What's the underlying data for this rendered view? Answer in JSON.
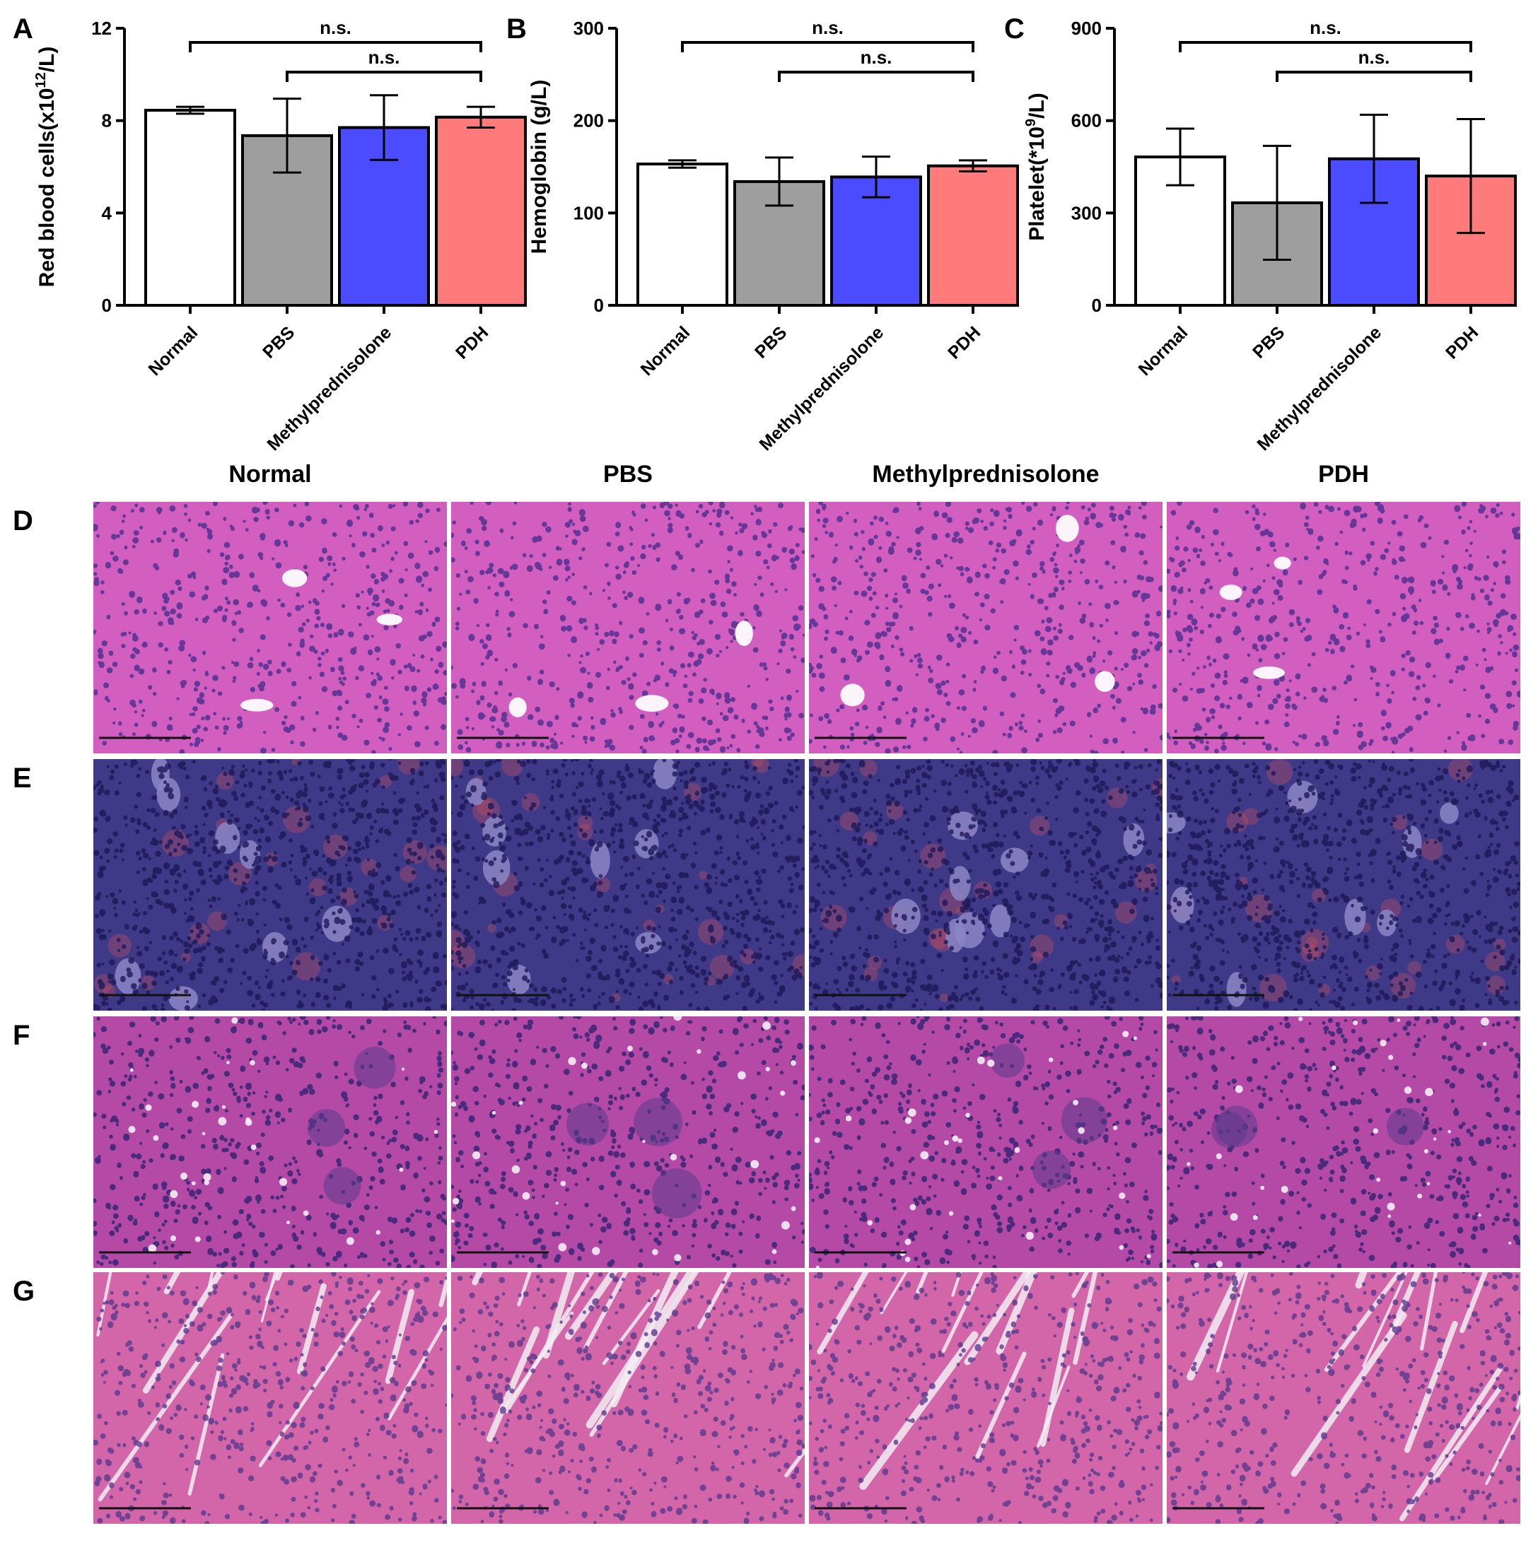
{
  "chart_data": [
    {
      "panel": "A",
      "type": "bar",
      "ylabel": "Red blood cells(x10",
      "ylabel_sup": "12",
      "ylabel_tail": "/L)",
      "ylim": [
        0,
        12
      ],
      "yticks": [
        "0",
        "4",
        "8",
        "12"
      ],
      "categories": [
        "Normal",
        "PBS",
        "Methylprednisolone",
        "PDH"
      ],
      "values": [
        8.45,
        7.35,
        7.7,
        8.15
      ],
      "errors": [
        0.15,
        1.6,
        1.4,
        0.45
      ],
      "colors": [
        "#ffffff",
        "#9e9e9e",
        "#4b4bff",
        "#ff7b7b"
      ],
      "significance": [
        {
          "from": 0,
          "to": 3,
          "label": "n.s."
        },
        {
          "from": 1,
          "to": 3,
          "label": "n.s."
        }
      ]
    },
    {
      "panel": "B",
      "type": "bar",
      "ylabel": "Hemoglobin (g/L)",
      "ylabel_sup": "",
      "ylabel_tail": "",
      "ylim": [
        0,
        300
      ],
      "yticks": [
        "0",
        "100",
        "200",
        "300"
      ],
      "categories": [
        "Normal",
        "PBS",
        "Methylprednisolone",
        "PDH"
      ],
      "values": [
        153,
        134,
        139,
        151
      ],
      "errors": [
        4,
        26,
        22,
        6
      ],
      "colors": [
        "#ffffff",
        "#9e9e9e",
        "#4b4bff",
        "#ff7b7b"
      ],
      "significance": [
        {
          "from": 0,
          "to": 3,
          "label": "n.s."
        },
        {
          "from": 1,
          "to": 3,
          "label": "n.s."
        }
      ]
    },
    {
      "panel": "C",
      "type": "bar",
      "ylabel": "Platelet(*10",
      "ylabel_sup": "9",
      "ylabel_tail": "/L)",
      "ylim": [
        0,
        900
      ],
      "yticks": [
        "0",
        "300",
        "600",
        "900"
      ],
      "categories": [
        "Normal",
        "PBS",
        "Methylprednisolone",
        "PDH"
      ],
      "values": [
        482,
        333,
        476,
        420
      ],
      "errors": [
        92,
        185,
        143,
        185
      ],
      "colors": [
        "#ffffff",
        "#9e9e9e",
        "#4b4bff",
        "#ff7b7b"
      ],
      "significance": [
        {
          "from": 0,
          "to": 3,
          "label": "n.s."
        },
        {
          "from": 1,
          "to": 3,
          "label": "n.s."
        }
      ]
    }
  ],
  "histology": {
    "columns": [
      "Normal",
      "PBS",
      "Methylprednisolone",
      "PDH"
    ],
    "rows": [
      {
        "label": "D",
        "base": "#d25fbf",
        "nuclei": "#4a2d8c",
        "style": "liver"
      },
      {
        "label": "E",
        "base": "#3f3a88",
        "nuclei": "#1e1858",
        "style": "spleen"
      },
      {
        "label": "F",
        "base": "#b54aa6",
        "nuclei": "#2f2370",
        "style": "kidney"
      },
      {
        "label": "G",
        "base": "#d266a8",
        "nuclei": "#5a3a8c",
        "style": "heart"
      }
    ]
  }
}
